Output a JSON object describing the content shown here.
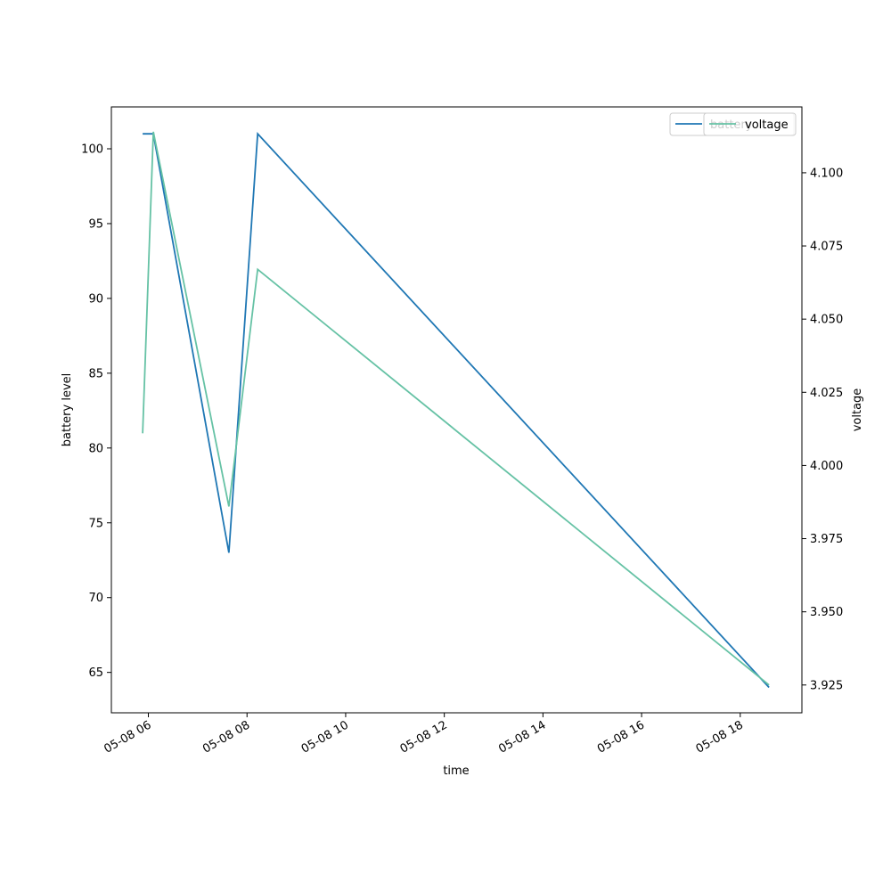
{
  "chart_data": {
    "type": "line",
    "xlabel": "time",
    "ylabel_left": "battery level",
    "ylabel_right": "voltage",
    "x_ticks": [
      "05-08 06",
      "05-08 08",
      "05-08 10",
      "05-08 12",
      "05-08 14",
      "05-08 16",
      "05-08 18"
    ],
    "x_tick_times": [
      "2024-05-08T06:00",
      "2024-05-08T08:00",
      "2024-05-08T10:00",
      "2024-05-08T12:00",
      "2024-05-08T14:00",
      "2024-05-08T16:00",
      "2024-05-08T18:00"
    ],
    "xlim": [
      "2024-05-08T05:15",
      "2024-05-08T19:15"
    ],
    "y_left_ticks": [
      65,
      70,
      75,
      80,
      85,
      90,
      95,
      100
    ],
    "y_left_lim": [
      62.3,
      102.8
    ],
    "y_right_ticks": [
      "3.925",
      "3.950",
      "3.975",
      "4.000",
      "4.025",
      "4.050",
      "4.075",
      "4.100"
    ],
    "y_right_lim": [
      3.9155,
      4.1225
    ],
    "series": [
      {
        "name": "battery",
        "axis": "left",
        "color": "#1f77b4",
        "x": [
          "2024-05-08T05:53",
          "2024-05-08T06:05",
          "2024-05-08T06:06",
          "2024-05-08T07:38",
          "2024-05-08T08:13",
          "2024-05-08T18:35"
        ],
        "y": [
          101,
          101,
          101,
          73,
          101,
          64
        ]
      },
      {
        "name": "voltage",
        "axis": "right",
        "color": "#66c2a5",
        "x": [
          "2024-05-08T05:53",
          "2024-05-08T06:06",
          "2024-05-08T07:38",
          "2024-05-08T08:13",
          "2024-05-08T18:35"
        ],
        "y": [
          4.011,
          4.114,
          3.986,
          4.067,
          3.925
        ]
      }
    ],
    "legend": [
      {
        "label": "battery",
        "color": "#1f77b4"
      },
      {
        "label": "voltage",
        "color": "#66c2a5"
      }
    ],
    "legend_position": "top-right",
    "grid": false
  }
}
